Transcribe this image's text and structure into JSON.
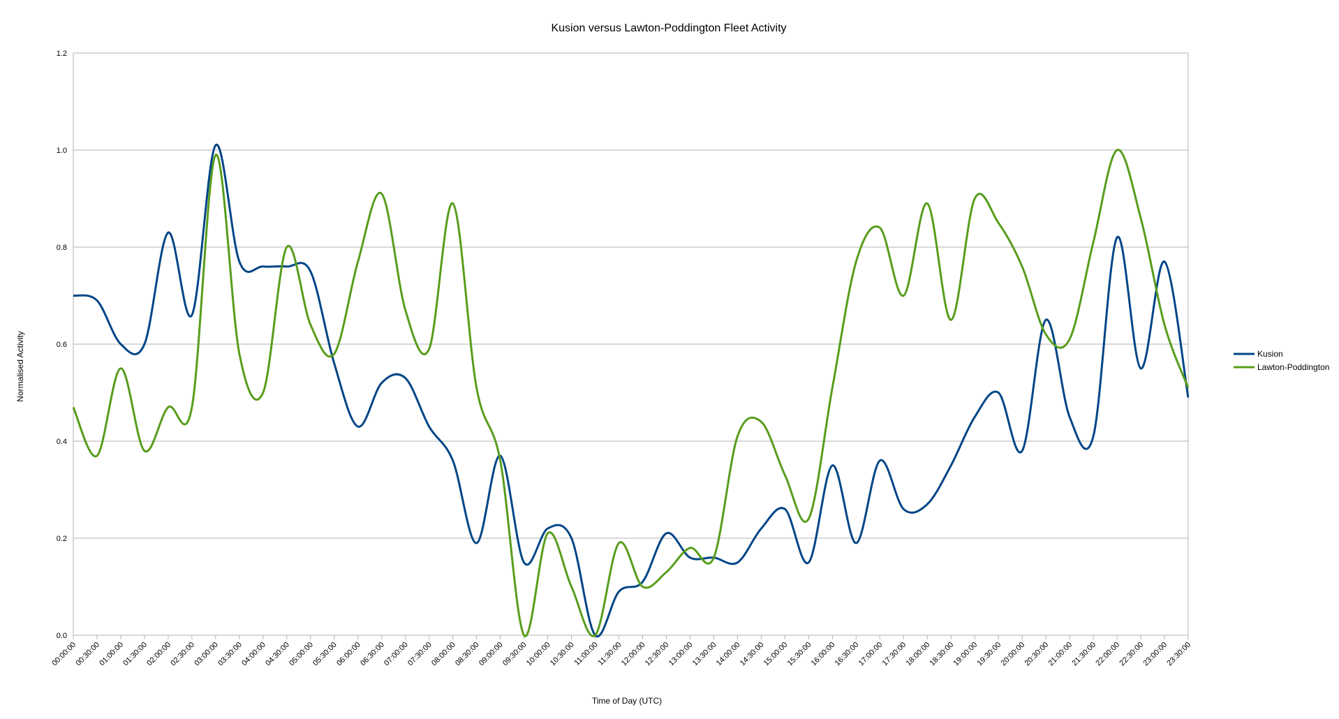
{
  "chart_data": {
    "type": "line",
    "title": "Kusion versus Lawton-Poddington Fleet Activity",
    "xlabel": "Time of Day (UTC)",
    "ylabel": "Normalised Activity",
    "ylim": [
      0,
      1.2
    ],
    "yticks": [
      "0.0",
      "0.2",
      "0.4",
      "0.6",
      "0.8",
      "1.0",
      "1.2"
    ],
    "grid": true,
    "legend": "right",
    "categories": [
      "00:00:00",
      "00:30:00",
      "01:00:00",
      "01:30:00",
      "02:00:00",
      "02:30:00",
      "03:00:00",
      "03:30:00",
      "04:00:00",
      "04:30:00",
      "05:00:00",
      "05:30:00",
      "06:00:00",
      "06:30:00",
      "07:00:00",
      "07:30:00",
      "08:00:00",
      "08:30:00",
      "09:00:00",
      "09:30:00",
      "10:00:00",
      "10:30:00",
      "11:00:00",
      "11:30:00",
      "12:00:00",
      "12:30:00",
      "13:00:00",
      "13:30:00",
      "14:00:00",
      "14:30:00",
      "15:00:00",
      "15:30:00",
      "16:00:00",
      "16:30:00",
      "17:00:00",
      "17:30:00",
      "18:00:00",
      "18:30:00",
      "19:00:00",
      "19:30:00",
      "20:00:00",
      "20:30:00",
      "21:00:00",
      "21:30:00",
      "22:00:00",
      "22:30:00",
      "23:00:00",
      "23:30:00"
    ],
    "series": [
      {
        "name": "Kusion",
        "color": "#004586",
        "values": [
          0.7,
          0.69,
          0.6,
          0.6,
          0.83,
          0.66,
          1.01,
          0.77,
          0.76,
          0.76,
          0.75,
          0.56,
          0.43,
          0.52,
          0.53,
          0.43,
          0.36,
          0.19,
          0.37,
          0.15,
          0.22,
          0.2,
          0.0,
          0.09,
          0.11,
          0.21,
          0.16,
          0.16,
          0.15,
          0.22,
          0.26,
          0.15,
          0.35,
          0.19,
          0.36,
          0.26,
          0.27,
          0.35,
          0.45,
          0.5,
          0.38,
          0.65,
          0.45,
          0.41,
          0.82,
          0.55,
          0.77,
          0.49
        ]
      },
      {
        "name": "Lawton-Poddington",
        "color": "#579d1c",
        "values": [
          0.47,
          0.37,
          0.55,
          0.38,
          0.47,
          0.47,
          0.99,
          0.58,
          0.5,
          0.8,
          0.64,
          0.58,
          0.77,
          0.91,
          0.67,
          0.59,
          0.89,
          0.51,
          0.36,
          0.0,
          0.21,
          0.1,
          0.0,
          0.19,
          0.1,
          0.13,
          0.18,
          0.16,
          0.41,
          0.44,
          0.33,
          0.24,
          0.51,
          0.77,
          0.84,
          0.7,
          0.89,
          0.65,
          0.9,
          0.85,
          0.76,
          0.62,
          0.61,
          0.81,
          1.0,
          0.86,
          0.64,
          0.51
        ]
      }
    ]
  }
}
